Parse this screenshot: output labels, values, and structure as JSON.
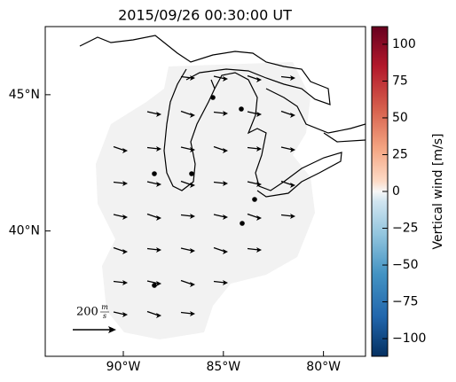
{
  "title": "2015/09/26 00:30:00 UT",
  "map": {
    "xlim": [
      -93.9,
      -77.9
    ],
    "ylim": [
      35.4,
      47.5
    ],
    "xticks": [
      {
        "value": -90,
        "label": "90°W"
      },
      {
        "value": -85,
        "label": "85°W"
      },
      {
        "value": -80,
        "label": "80°W"
      }
    ],
    "yticks": [
      {
        "value": 45,
        "label": "45°N"
      },
      {
        "value": 40,
        "label": "40°N"
      }
    ],
    "scale": {
      "number": "200",
      "unit_top": "m",
      "unit_bottom": "s"
    }
  },
  "colorbar": {
    "label": "Vertical wind [m/s]",
    "lim": [
      -112,
      112
    ],
    "ticks": [
      100,
      75,
      50,
      25,
      0,
      {
        "value": -25,
        "label": "−25"
      },
      {
        "value": -50,
        "label": "−50"
      },
      {
        "value": -75,
        "label": "−75"
      },
      {
        "value": -100,
        "label": "−100"
      }
    ]
  }
}
